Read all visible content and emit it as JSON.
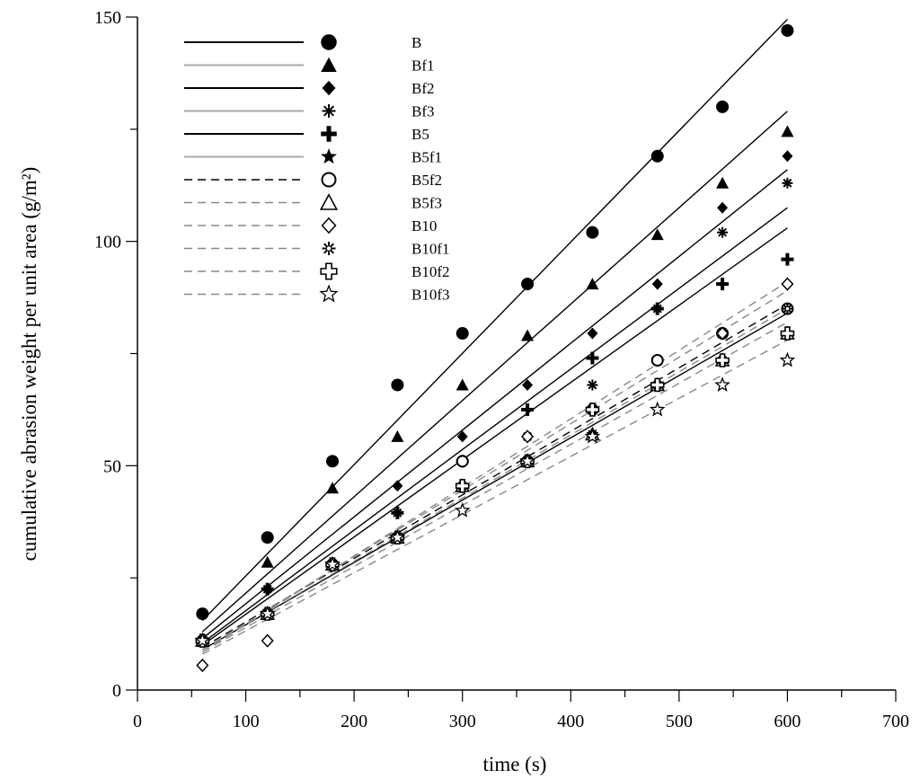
{
  "chart_data": {
    "type": "scatter",
    "xlabel": "time (s)",
    "ylabel": "cumulative abrasion weight per unit area (g/m²)",
    "xlim": [
      0,
      700
    ],
    "ylim": [
      0,
      150
    ],
    "xticks": [
      0,
      100,
      200,
      300,
      400,
      500,
      600,
      700
    ],
    "yticks": [
      0,
      50,
      100,
      150
    ],
    "x": [
      60,
      120,
      180,
      240,
      300,
      360,
      420,
      480,
      540,
      600
    ],
    "grid": false,
    "legend_position": "top-left",
    "series": [
      {
        "name": "B",
        "marker": "filled-circle",
        "line_color": "#000000",
        "line_style": "solid",
        "values": [
          17.0,
          34.0,
          51.0,
          68.0,
          79.5,
          90.5,
          102.0,
          119.0,
          130.0,
          147.0
        ],
        "fit": [
          [
            60,
            15.5
          ],
          [
            600,
            149.5
          ]
        ]
      },
      {
        "name": "Bf1",
        "marker": "filled-triangle",
        "line_color": "#aaaaaa",
        "line_style": "solid",
        "values": [
          11.5,
          28.5,
          45.0,
          56.5,
          68.0,
          79.0,
          90.5,
          101.5,
          113.0,
          124.5
        ],
        "fit": [
          [
            60,
            13.0
          ],
          [
            600,
            129.0
          ]
        ]
      },
      {
        "name": "Bf2",
        "marker": "filled-diamond",
        "line_color": "#000000",
        "line_style": "solid",
        "values": [
          11.0,
          22.5,
          28.5,
          45.5,
          56.5,
          68.0,
          79.5,
          90.5,
          107.5,
          119.0
        ],
        "fit": [
          [
            60,
            11.5
          ],
          [
            600,
            116.0
          ]
        ]
      },
      {
        "name": "Bf3",
        "marker": "asterisk",
        "line_color": "#aaaaaa",
        "line_style": "solid",
        "values": [
          11.0,
          22.5,
          28.0,
          39.5,
          51.0,
          56.5,
          68.0,
          85.0,
          102.0,
          113.0
        ],
        "fit": [
          [
            60,
            10.5
          ],
          [
            600,
            107.5
          ]
        ]
      },
      {
        "name": "B5",
        "marker": "bold-plus",
        "line_color": "#000000",
        "line_style": "solid",
        "values": [
          11.0,
          22.5,
          28.0,
          39.5,
          51.0,
          62.5,
          74.0,
          85.0,
          90.5,
          96.0
        ],
        "fit": [
          [
            60,
            10.0
          ],
          [
            600,
            103.0
          ]
        ]
      },
      {
        "name": "B5f1",
        "marker": "filled-star",
        "line_color": "#aaaaaa",
        "line_style": "solid",
        "values": [
          11.0,
          17.0,
          28.0,
          34.0,
          45.5,
          51.0,
          57.0,
          68.0,
          73.5,
          79.5
        ],
        "fit": [
          [
            60,
            9.0
          ],
          [
            600,
            84.0
          ]
        ]
      },
      {
        "name": "B5f2",
        "marker": "open-circle",
        "line_color": "#000000",
        "line_style": "dashed",
        "values": [
          11.0,
          17.0,
          28.0,
          34.0,
          51.0,
          51.0,
          62.5,
          73.5,
          79.5,
          85.0
        ],
        "fit": [
          [
            60,
            9.5
          ],
          [
            600,
            86.0
          ]
        ]
      },
      {
        "name": "B5f3",
        "marker": "open-triangle",
        "line_color": "#888888",
        "line_style": "dashed",
        "values": [
          11.0,
          17.0,
          28.0,
          34.0,
          45.5,
          51.0,
          57.0,
          68.0,
          73.5,
          79.5
        ],
        "fit": [
          [
            60,
            9.0
          ],
          [
            600,
            85.0
          ]
        ]
      },
      {
        "name": "B10",
        "marker": "open-diamond",
        "line_color": "#888888",
        "line_style": "dashed",
        "values": [
          5.5,
          11.0,
          28.0,
          34.0,
          45.5,
          56.5,
          62.5,
          68.0,
          79.5,
          90.5
        ],
        "fit": [
          [
            60,
            8.5
          ],
          [
            600,
            91.0
          ]
        ]
      },
      {
        "name": "B10f1",
        "marker": "open-asterisk",
        "line_color": "#888888",
        "line_style": "dashed",
        "values": [
          11.0,
          17.0,
          28.0,
          34.0,
          45.5,
          51.0,
          57.0,
          68.0,
          73.5,
          85.0
        ],
        "fit": [
          [
            60,
            9.0
          ],
          [
            600,
            89.0
          ]
        ]
      },
      {
        "name": "B10f2",
        "marker": "open-plus",
        "line_color": "#888888",
        "line_style": "dashed",
        "values": [
          11.0,
          17.0,
          28.0,
          34.0,
          45.5,
          51.0,
          62.5,
          68.0,
          73.5,
          79.5
        ],
        "fit": [
          [
            60,
            8.5
          ],
          [
            600,
            82.0
          ]
        ]
      },
      {
        "name": "B10f3",
        "marker": "open-star",
        "line_color": "#888888",
        "line_style": "dashed",
        "values": [
          11.0,
          17.0,
          28.0,
          34.0,
          40.0,
          51.0,
          56.5,
          62.5,
          68.0,
          73.5
        ],
        "fit": [
          [
            60,
            8.0
          ],
          [
            600,
            78.0
          ]
        ]
      }
    ]
  }
}
